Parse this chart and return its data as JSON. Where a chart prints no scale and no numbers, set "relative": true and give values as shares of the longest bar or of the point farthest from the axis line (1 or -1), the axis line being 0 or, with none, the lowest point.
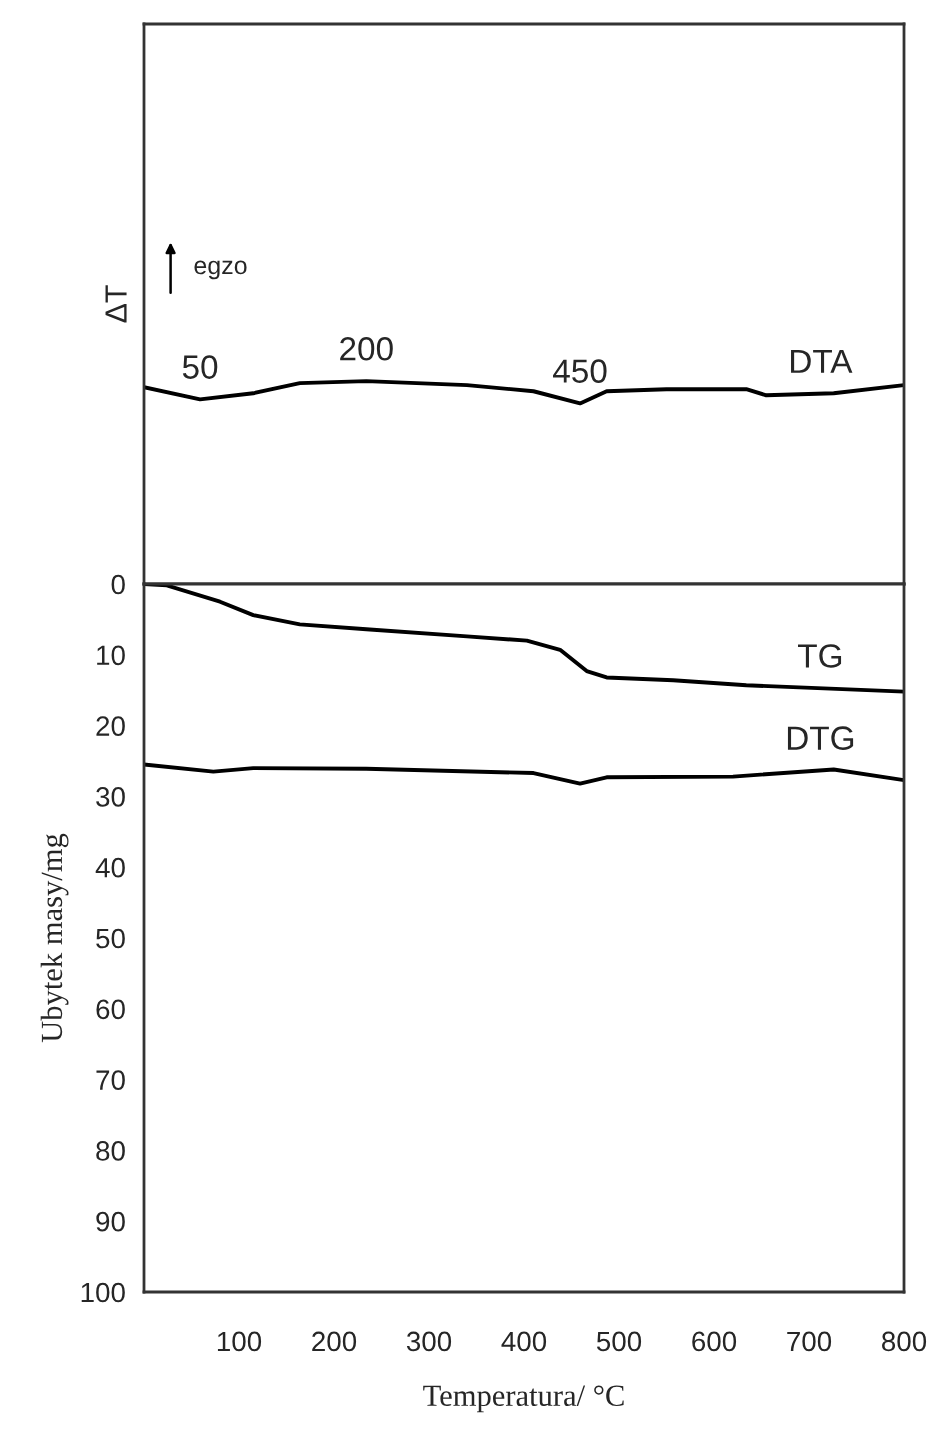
{
  "chart_data": [
    {
      "type": "line",
      "relative": true,
      "xlim": [
        0,
        800
      ],
      "ylabel": "ΔT",
      "series": [
        {
          "name": "DTA",
          "color": "#000000",
          "x": [
            0,
            59,
            115,
            164,
            234,
            340,
            410,
            459,
            487,
            550,
            634,
            655,
            726,
            800
          ],
          "values": [
            0.97,
            0.91,
            0.94,
            0.99,
            1.0,
            0.98,
            0.95,
            0.89,
            0.95,
            0.96,
            0.96,
            0.93,
            0.94,
            0.98
          ]
        }
      ],
      "annotations": [
        "egzo",
        {
          "text": "50",
          "x": 59,
          "y": 0.91
        },
        {
          "text": "200",
          "x": 234,
          "y": 1.0
        },
        {
          "text": "450",
          "x": 459,
          "y": 0.89
        }
      ]
    },
    {
      "type": "line",
      "xlim": [
        0,
        800
      ],
      "ylim": [
        100,
        0
      ],
      "xticks": [
        100,
        200,
        300,
        400,
        500,
        600,
        700,
        800
      ],
      "yticks": [
        0,
        10,
        20,
        30,
        40,
        50,
        60,
        70,
        80,
        90,
        100
      ],
      "xlabel": "Temperatura/ °C",
      "ylabel": "Ubytek masy/mg",
      "series": [
        {
          "name": "TG",
          "color": "#000000",
          "x": [
            0,
            24,
            80,
            115,
            164,
            234,
            340,
            403,
            438,
            466,
            487,
            557,
            634,
            800
          ],
          "values": [
            0,
            0.2,
            2.5,
            4.4,
            5.7,
            6.4,
            7.4,
            8.0,
            9.3,
            12.3,
            13.2,
            13.6,
            14.3,
            15.2
          ]
        },
        {
          "name": "DTG",
          "color": "#000000",
          "x": [
            0,
            73,
            115,
            234,
            410,
            459,
            487,
            620,
            726,
            800
          ],
          "values": [
            25.5,
            26.5,
            26.0,
            26.1,
            26.7,
            28.2,
            27.3,
            27.2,
            26.2,
            27.7
          ]
        }
      ]
    }
  ]
}
